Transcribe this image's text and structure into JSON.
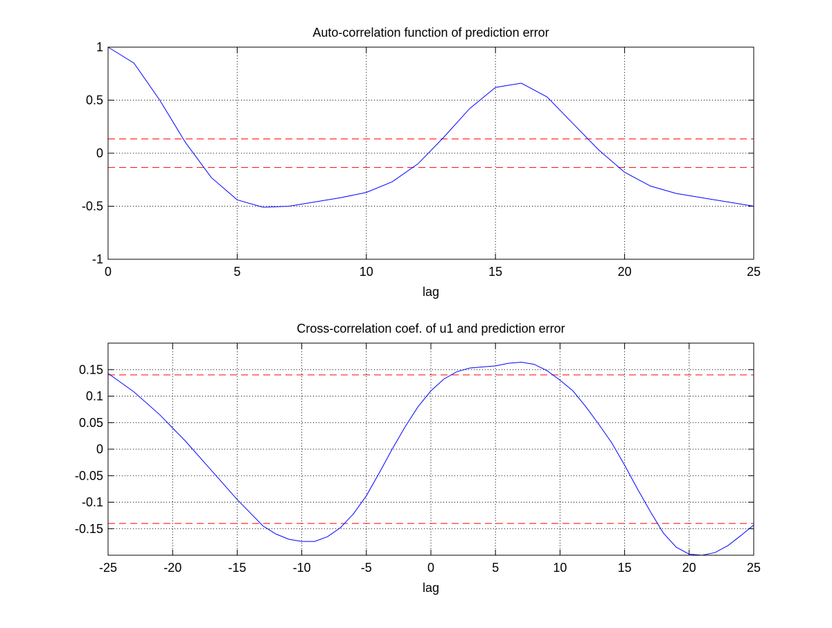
{
  "chart_data": [
    {
      "type": "line",
      "title": "Auto-correlation function of prediction error",
      "xlabel": "lag",
      "ylabel": "",
      "xlim": [
        0,
        25
      ],
      "ylim": [
        -1,
        1
      ],
      "xticks": [
        0,
        5,
        10,
        15,
        20,
        25
      ],
      "xtick_labels": [
        "0",
        "5",
        "10",
        "15",
        "20",
        "25"
      ],
      "yticks": [
        -1,
        -0.5,
        0,
        0.5,
        1
      ],
      "ytick_labels": [
        "-1",
        "-0.5",
        "0",
        "0.5",
        "1"
      ],
      "grid": true,
      "grid_style": "dotted",
      "series": [
        {
          "color": "#0000ff",
          "style": "solid",
          "x": [
            0,
            1,
            2,
            3,
            4,
            5,
            6,
            7,
            8,
            9,
            10,
            11,
            12,
            13,
            14,
            15,
            16,
            17,
            18,
            19,
            20,
            21,
            22,
            23,
            24,
            25
          ],
          "values": [
            1.0,
            0.85,
            0.5,
            0.1,
            -0.23,
            -0.44,
            -0.51,
            -0.5,
            -0.46,
            -0.42,
            -0.37,
            -0.27,
            -0.1,
            0.15,
            0.42,
            0.62,
            0.66,
            0.53,
            0.28,
            0.03,
            -0.18,
            -0.31,
            -0.38,
            -0.42,
            -0.46,
            -0.5
          ]
        }
      ],
      "confidence_band": {
        "color": "#ff0000",
        "style": "dashed",
        "upper": 0.135,
        "lower": -0.135
      }
    },
    {
      "type": "line",
      "title": "Cross-correlation coef. of u1 and prediction error",
      "xlabel": "lag",
      "ylabel": "",
      "xlim": [
        -25,
        25
      ],
      "ylim": [
        -0.2,
        0.2
      ],
      "xticks": [
        -25,
        -20,
        -15,
        -10,
        -5,
        0,
        5,
        10,
        15,
        20,
        25
      ],
      "xtick_labels": [
        "-25",
        "-20",
        "-15",
        "-10",
        "-5",
        "0",
        "5",
        "10",
        "15",
        "20",
        "25"
      ],
      "yticks": [
        -0.15,
        -0.1,
        -0.05,
        0,
        0.05,
        0.1,
        0.15
      ],
      "ytick_labels": [
        "-0.15",
        "-0.1",
        "-0.05",
        "0",
        "0.05",
        "0.1",
        "0.15"
      ],
      "grid": true,
      "grid_style": "dotted",
      "series": [
        {
          "color": "#0000ff",
          "style": "solid",
          "x": [
            -25,
            -23,
            -21,
            -19,
            -17,
            -15,
            -13,
            -12,
            -11,
            -10,
            -9,
            -8,
            -7,
            -6,
            -5,
            -4,
            -3,
            -2,
            -1,
            0,
            1,
            2,
            3,
            4,
            5,
            6,
            7,
            8,
            9,
            10,
            11,
            12,
            13,
            14,
            15,
            16,
            17,
            18,
            19,
            20,
            21,
            22,
            23,
            24,
            25
          ],
          "values": [
            0.143,
            0.108,
            0.065,
            0.015,
            -0.04,
            -0.095,
            -0.145,
            -0.16,
            -0.17,
            -0.174,
            -0.174,
            -0.165,
            -0.148,
            -0.122,
            -0.088,
            -0.045,
            0.0,
            0.042,
            0.08,
            0.11,
            0.132,
            0.146,
            0.153,
            0.155,
            0.157,
            0.162,
            0.164,
            0.16,
            0.148,
            0.13,
            0.11,
            0.08,
            0.047,
            0.012,
            -0.03,
            -0.075,
            -0.118,
            -0.158,
            -0.185,
            -0.198,
            -0.2,
            -0.195,
            -0.182,
            -0.163,
            -0.143
          ]
        }
      ],
      "confidence_band": {
        "color": "#ff0000",
        "style": "dashed",
        "upper": 0.14,
        "lower": -0.14
      }
    }
  ]
}
